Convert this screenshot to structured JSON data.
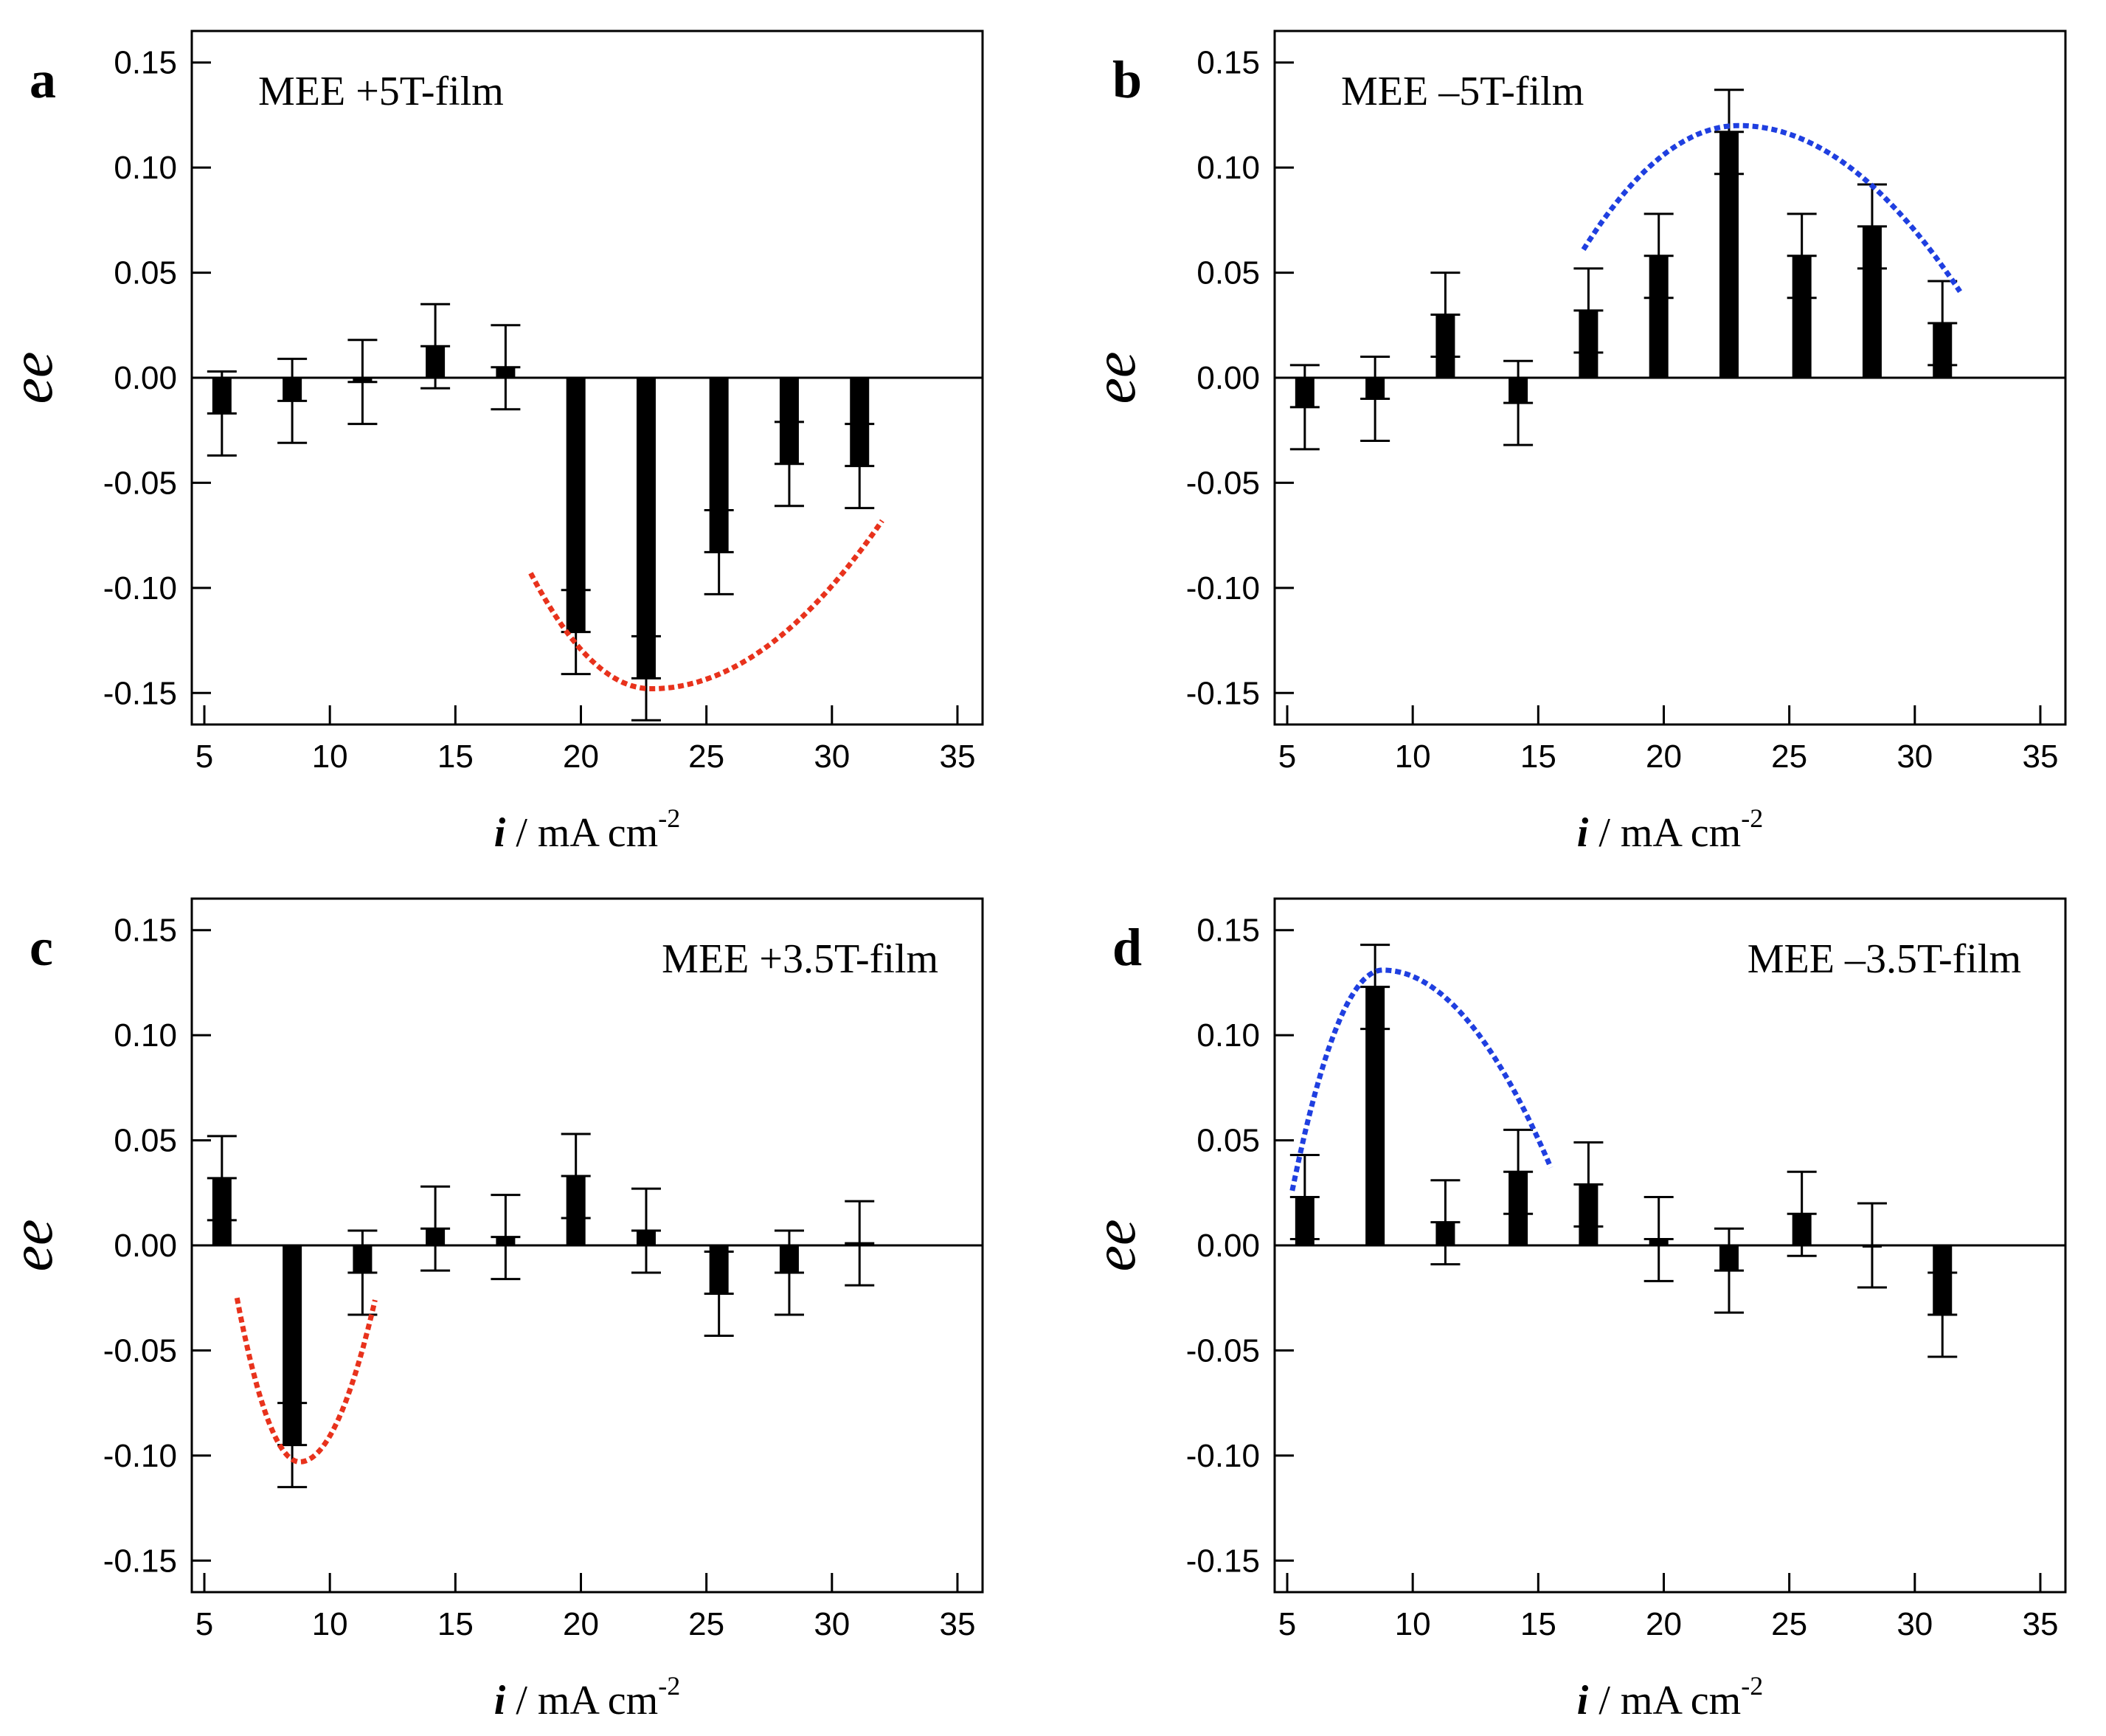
{
  "figure": {
    "background": "#ffffff"
  },
  "chart_data": [
    {
      "panel": "a",
      "type": "bar",
      "title": "MEE +5T-film",
      "annotation_position": "top-left",
      "xlabel": {
        "var": "i",
        "unit": " / mA cm",
        "exp": "-2"
      },
      "ylabel": "ee",
      "xlim": [
        4.5,
        36
      ],
      "ylim": [
        -0.165,
        0.165
      ],
      "xticks": [
        5,
        10,
        15,
        20,
        25,
        30,
        35
      ],
      "yticks": [
        0.15,
        0.1,
        0.05,
        0.0,
        -0.05,
        -0.1,
        -0.15
      ],
      "ytick_labels": [
        "0.15",
        "0.10",
        "0.05",
        "0.00",
        "-0.05",
        "-0.10",
        "-0.15"
      ],
      "x": [
        5.7,
        8.5,
        11.3,
        14.2,
        17.0,
        19.8,
        22.6,
        25.5,
        28.3,
        31.1
      ],
      "values": [
        -0.017,
        -0.011,
        -0.002,
        0.015,
        0.005,
        -0.121,
        -0.143,
        -0.083,
        -0.041,
        -0.042
      ],
      "error": [
        0.02,
        0.02,
        0.02,
        0.02,
        0.02,
        0.02,
        0.02,
        0.02,
        0.02,
        0.02
      ],
      "fit_curve": {
        "color": "#e8321c",
        "x": [
          18.0,
          32.0
        ],
        "vertex": [
          22.8,
          -0.148
        ],
        "end_values": [
          -0.093,
          -0.068
        ]
      }
    },
    {
      "panel": "b",
      "type": "bar",
      "title": "MEE –5T-film",
      "annotation_position": "top-left",
      "xlabel": {
        "var": "i",
        "unit": " / mA cm",
        "exp": "-2"
      },
      "ylabel": "ee",
      "xlim": [
        4.5,
        36
      ],
      "ylim": [
        -0.165,
        0.165
      ],
      "xticks": [
        5,
        10,
        15,
        20,
        25,
        30,
        35
      ],
      "yticks": [
        0.15,
        0.1,
        0.05,
        0.0,
        -0.05,
        -0.1,
        -0.15
      ],
      "ytick_labels": [
        "0.15",
        "0.10",
        "0.05",
        "0.00",
        "-0.05",
        "-0.10",
        "-0.15"
      ],
      "x": [
        5.7,
        8.5,
        11.3,
        14.2,
        17.0,
        19.8,
        22.6,
        25.5,
        28.3,
        31.1
      ],
      "values": [
        -0.014,
        -0.01,
        0.03,
        -0.012,
        0.032,
        0.058,
        0.117,
        0.058,
        0.072,
        0.026
      ],
      "error": [
        0.02,
        0.02,
        0.02,
        0.02,
        0.02,
        0.02,
        0.02,
        0.02,
        0.02,
        0.02
      ],
      "fit_curve": {
        "color": "#1f3fe0",
        "x": [
          16.8,
          31.8
        ],
        "vertex": [
          23.0,
          0.12
        ],
        "end_values": [
          0.061,
          0.041
        ]
      }
    },
    {
      "panel": "c",
      "type": "bar",
      "title": "MEE +3.5T-film",
      "annotation_position": "top-right",
      "xlabel": {
        "var": "i",
        "unit": " / mA cm",
        "exp": "-2"
      },
      "ylabel": "ee",
      "xlim": [
        4.5,
        36
      ],
      "ylim": [
        -0.165,
        0.165
      ],
      "xticks": [
        5,
        10,
        15,
        20,
        25,
        30,
        35
      ],
      "yticks": [
        0.15,
        0.1,
        0.05,
        0.0,
        -0.05,
        -0.1,
        -0.15
      ],
      "ytick_labels": [
        "0.15",
        "0.10",
        "0.05",
        "0.00",
        "-0.05",
        "-0.10",
        "-0.15"
      ],
      "x": [
        5.7,
        8.5,
        11.3,
        14.2,
        17.0,
        19.8,
        22.6,
        25.5,
        28.3,
        31.1
      ],
      "values": [
        0.032,
        -0.095,
        -0.013,
        0.008,
        0.004,
        0.033,
        0.007,
        -0.023,
        -0.013,
        0.001
      ],
      "error": [
        0.02,
        0.02,
        0.02,
        0.02,
        0.02,
        0.02,
        0.02,
        0.02,
        0.02,
        0.02
      ],
      "fit_curve": {
        "color": "#e8321c",
        "x": [
          6.3,
          11.8
        ],
        "vertex": [
          8.8,
          -0.103
        ],
        "end_values": [
          -0.025,
          -0.026
        ]
      }
    },
    {
      "panel": "d",
      "type": "bar",
      "title": "MEE –3.5T-film",
      "annotation_position": "top-right",
      "xlabel": {
        "var": "i",
        "unit": " / mA cm",
        "exp": "-2"
      },
      "ylabel": "ee",
      "xlim": [
        4.5,
        36
      ],
      "ylim": [
        -0.165,
        0.165
      ],
      "xticks": [
        5,
        10,
        15,
        20,
        25,
        30,
        35
      ],
      "yticks": [
        0.15,
        0.1,
        0.05,
        0.0,
        -0.05,
        -0.1,
        -0.15
      ],
      "ytick_labels": [
        "0.15",
        "0.10",
        "0.05",
        "0.00",
        "-0.05",
        "-0.10",
        "-0.15"
      ],
      "x": [
        5.7,
        8.5,
        11.3,
        14.2,
        17.0,
        19.8,
        22.6,
        25.5,
        28.3,
        31.1
      ],
      "values": [
        0.023,
        0.123,
        0.011,
        0.035,
        0.029,
        0.003,
        -0.012,
        0.015,
        0.0,
        -0.033
      ],
      "error": [
        0.02,
        0.02,
        0.02,
        0.02,
        0.02,
        0.02,
        0.02,
        0.02,
        0.02,
        0.02
      ],
      "fit_curve": {
        "color": "#1f3fe0",
        "x": [
          5.2,
          15.5
        ],
        "vertex": [
          8.8,
          0.131
        ],
        "end_values": [
          0.026,
          0.037
        ]
      }
    }
  ]
}
